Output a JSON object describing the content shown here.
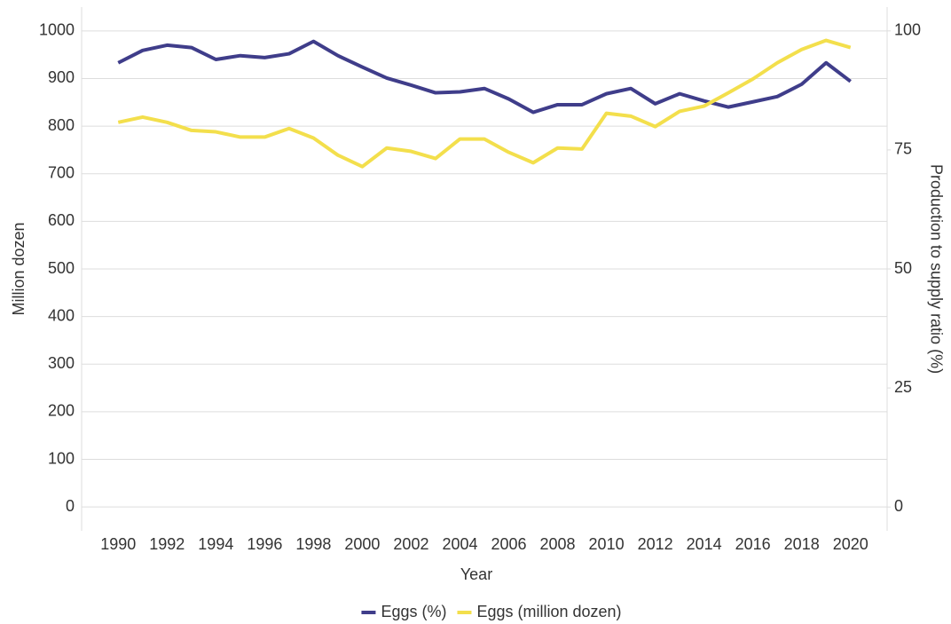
{
  "chart_data": {
    "type": "line",
    "x_label": "Year",
    "y_label": "Million dozen",
    "y2_label": "Production to supply ratio (%)",
    "x": [
      1990,
      1991,
      1992,
      1993,
      1994,
      1995,
      1996,
      1997,
      1998,
      1999,
      2000,
      2001,
      2002,
      2003,
      2004,
      2005,
      2006,
      2007,
      2008,
      2009,
      2010,
      2011,
      2012,
      2013,
      2014,
      2015,
      2016,
      2017,
      2018,
      2019,
      2020
    ],
    "series": [
      {
        "name": "Eggs (%)",
        "color": "#3f3d8a",
        "axis": "y2",
        "values": [
          93.3,
          95.9,
          97.0,
          96.5,
          94.0,
          94.8,
          94.4,
          95.2,
          97.8,
          94.8,
          92.4,
          90.1,
          88.6,
          87.0,
          87.2,
          87.9,
          85.7,
          82.9,
          84.5,
          84.5,
          86.8,
          87.9,
          84.7,
          86.8,
          85.3,
          84.0,
          85.1,
          86.2,
          88.8,
          93.3,
          89.4
        ]
      },
      {
        "name": "Eggs (million dozen)",
        "color": "#f3df4c",
        "values": [
          808,
          819,
          808,
          791,
          788,
          777,
          777,
          795,
          775,
          739,
          715,
          754,
          747,
          732,
          773,
          773,
          745,
          723,
          754,
          752,
          827,
          821,
          799,
          831,
          842,
          870,
          899,
          933,
          961,
          980,
          965
        ]
      }
    ],
    "xlim": [
      1988.5,
      2021.5
    ],
    "xticks": [
      1990,
      1992,
      1994,
      1996,
      1998,
      2000,
      2002,
      2004,
      2006,
      2008,
      2010,
      2012,
      2014,
      2016,
      2018,
      2020
    ],
    "ylim": [
      -50,
      1050
    ],
    "yticks": [
      0,
      100,
      200,
      300,
      400,
      500,
      600,
      700,
      800,
      900,
      1000
    ],
    "y2lim": [
      -5,
      105
    ],
    "y2ticks": [
      0,
      25,
      50,
      75,
      100
    ],
    "grid": true,
    "legend": "bottom"
  }
}
